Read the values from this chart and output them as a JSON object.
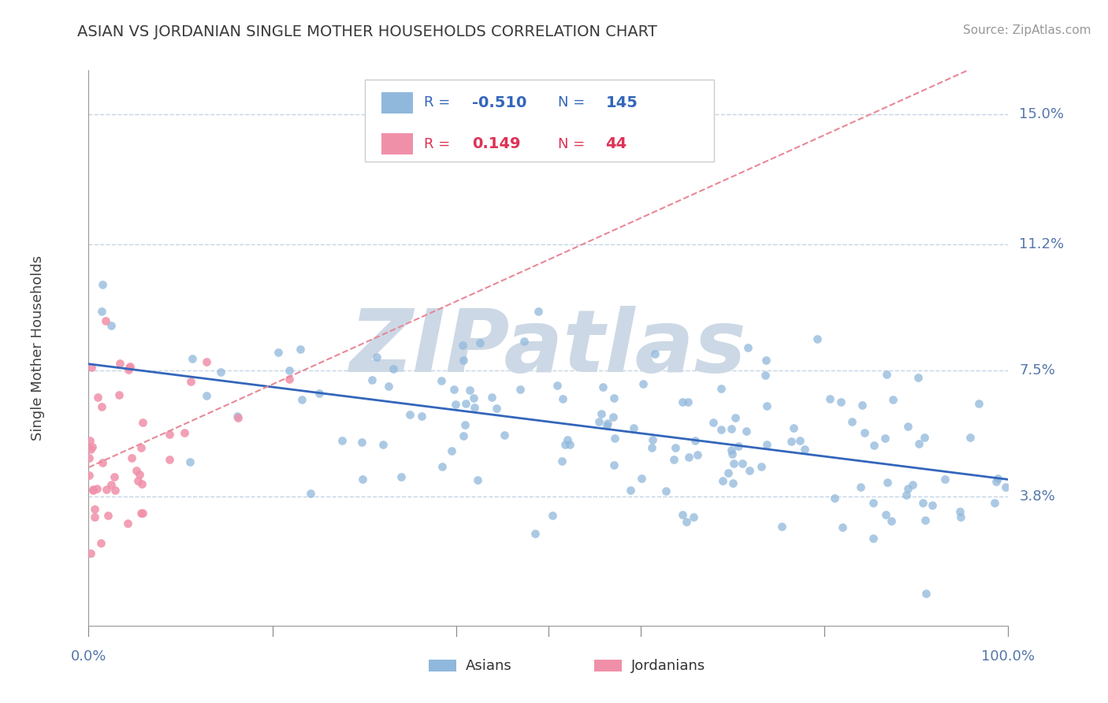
{
  "title": "ASIAN VS JORDANIAN SINGLE MOTHER HOUSEHOLDS CORRELATION CHART",
  "source_text": "Source: ZipAtlas.com",
  "ylabel": "Single Mother Households",
  "ytick_labels": [
    "3.8%",
    "7.5%",
    "11.2%",
    "15.0%"
  ],
  "ytick_values": [
    0.038,
    0.075,
    0.112,
    0.15
  ],
  "xtick_labels": [
    "0.0%",
    "100.0%"
  ],
  "xtick_values": [
    0.0,
    1.0
  ],
  "xmin": 0.0,
  "xmax": 1.0,
  "ymin": 0.0,
  "ymax": 0.163,
  "watermark": "ZIPatlas",
  "watermark_color": "#ccd8e5",
  "title_color": "#3a3a3a",
  "axis_label_color": "#5577aa",
  "grid_color": "#c5d5e5",
  "blue_dot_color": "#90b8dc",
  "pink_dot_color": "#f090a8",
  "blue_line_color": "#3366bb",
  "pink_line_color": "#e88898",
  "legend_R1_color": "#3366bb",
  "legend_R2_color": "#dd3355",
  "bottom_legend_labels": [
    "Asians",
    "Jordanians"
  ],
  "R_asian": -0.51,
  "N_asian": 145,
  "R_jordan": 0.149,
  "N_jordan": 44,
  "seed": 42
}
